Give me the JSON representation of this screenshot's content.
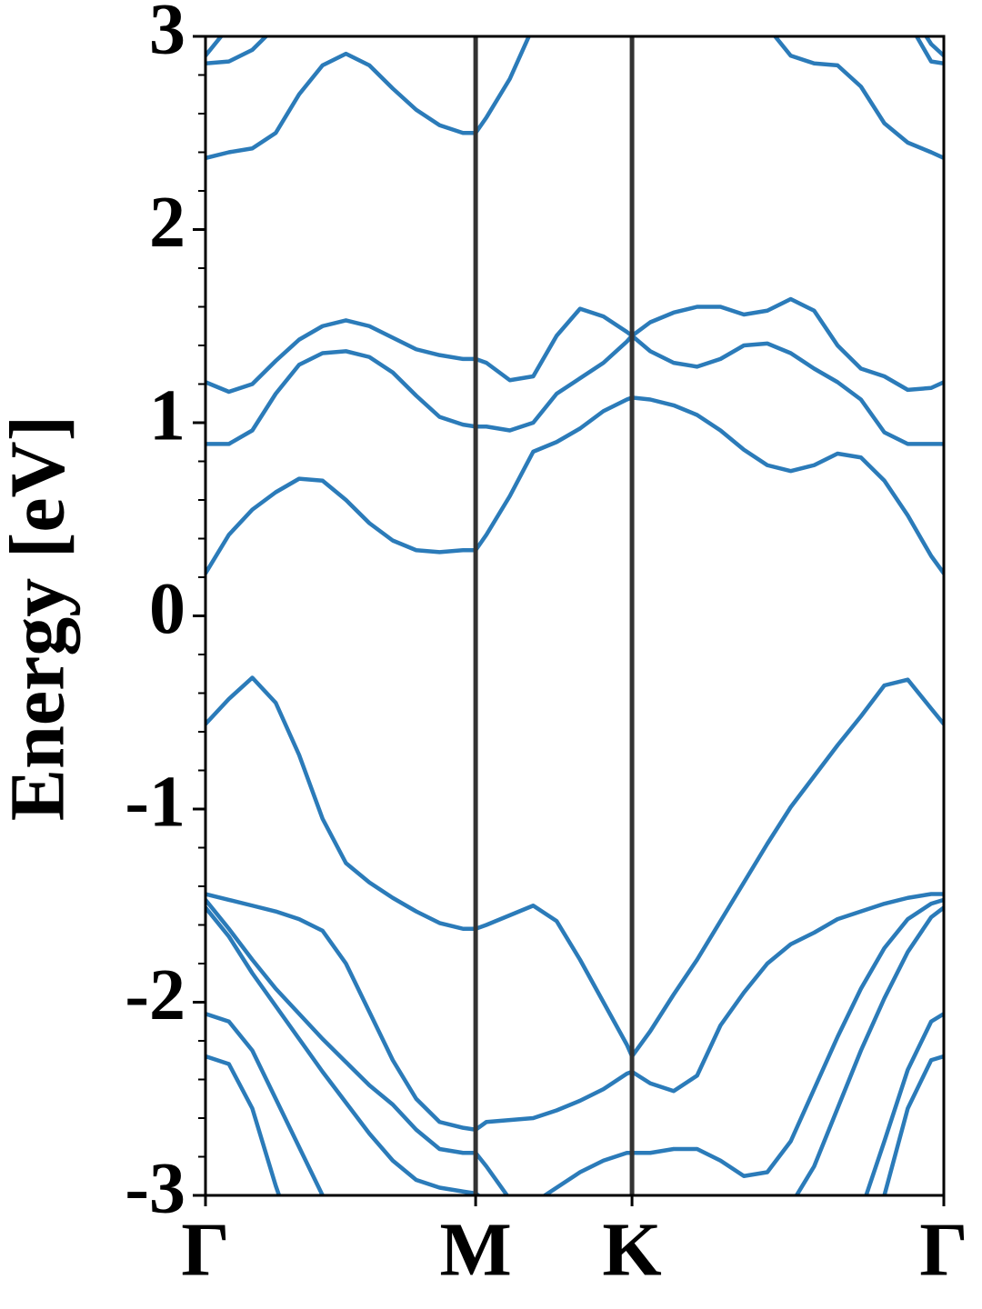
{
  "chart_data": {
    "type": "line",
    "ylabel": "Energy [eV]",
    "x": [
      0,
      0.05,
      0.1,
      0.15,
      0.2,
      0.25,
      0.3,
      0.35,
      0.4,
      0.45,
      0.5,
      0.55,
      0.577,
      0.6,
      0.65,
      0.7,
      0.75,
      0.8,
      0.85,
      0.9,
      0.911,
      0.95,
      1.0,
      1.05,
      1.1,
      1.15,
      1.2,
      1.25,
      1.3,
      1.35,
      1.4,
      1.45,
      1.5,
      1.55,
      1.577
    ],
    "xlim": [
      0,
      1.577
    ],
    "xticks": [
      {
        "value": 0,
        "label": "Γ"
      },
      {
        "value": 0.577,
        "label": "M"
      },
      {
        "value": 0.911,
        "label": "K"
      },
      {
        "value": 1.577,
        "label": "Γ"
      }
    ],
    "ylim": [
      -3,
      3
    ],
    "yticks": [
      -3,
      -2,
      -1,
      0,
      1,
      2,
      3
    ],
    "yminorticks": [
      -2.8,
      -2.6,
      -2.4,
      -2.2,
      -1.8,
      -1.6,
      -1.4,
      -1.2,
      -0.8,
      -0.6,
      -0.4,
      -0.2,
      0.2,
      0.4,
      0.6,
      0.8,
      1.2,
      1.4,
      1.6,
      1.8,
      2.2,
      2.4,
      2.6,
      2.8
    ],
    "color": "#2b7bb9",
    "vline_color": "#333333",
    "series": [
      {
        "values": [
          0.22,
          0.42,
          0.55,
          0.64,
          0.71,
          0.7,
          0.6,
          0.48,
          0.39,
          0.34,
          0.33,
          0.34,
          0.34,
          0.42,
          0.62,
          0.85,
          0.9,
          0.97,
          1.06,
          1.12,
          1.13,
          1.12,
          1.09,
          1.04,
          0.96,
          0.86,
          0.78,
          0.75,
          0.78,
          0.84,
          0.82,
          0.7,
          0.52,
          0.31,
          0.22
        ]
      },
      {
        "values": [
          0.89,
          0.89,
          0.96,
          1.15,
          1.3,
          1.36,
          1.37,
          1.34,
          1.26,
          1.14,
          1.03,
          0.99,
          0.98,
          0.98,
          0.96,
          1.0,
          1.15,
          1.23,
          1.31,
          1.42,
          1.45,
          1.37,
          1.31,
          1.29,
          1.33,
          1.4,
          1.41,
          1.36,
          1.28,
          1.21,
          1.12,
          0.95,
          0.89,
          0.89,
          0.89
        ]
      },
      {
        "values": [
          1.21,
          1.16,
          1.2,
          1.32,
          1.43,
          1.5,
          1.53,
          1.5,
          1.44,
          1.38,
          1.35,
          1.33,
          1.33,
          1.31,
          1.22,
          1.24,
          1.45,
          1.59,
          1.55,
          1.47,
          1.45,
          1.52,
          1.57,
          1.6,
          1.6,
          1.56,
          1.58,
          1.64,
          1.58,
          1.4,
          1.28,
          1.24,
          1.17,
          1.18,
          1.21
        ]
      },
      {
        "values": [
          2.37,
          2.4,
          2.42,
          2.5,
          2.7,
          2.85,
          2.91,
          2.85,
          2.73,
          2.62,
          2.54,
          2.5,
          2.5,
          2.58,
          2.78,
          3.05,
          null,
          null,
          null,
          null,
          null,
          null,
          null,
          null,
          null,
          null,
          3.05,
          2.9,
          2.86,
          2.85,
          2.74,
          2.55,
          2.45,
          2.4,
          2.37
        ]
      },
      {
        "values": [
          2.86,
          2.87,
          2.93,
          3.05,
          null,
          null,
          null,
          null,
          null,
          null,
          null,
          null,
          null,
          null,
          null,
          null,
          null,
          null,
          null,
          null,
          null,
          null,
          null,
          null,
          null,
          null,
          null,
          null,
          null,
          null,
          null,
          null,
          3.08,
          2.87,
          2.86
        ]
      },
      {
        "values": [
          2.9,
          3.05,
          null,
          null,
          null,
          null,
          null,
          null,
          null,
          null,
          null,
          null,
          null,
          null,
          null,
          null,
          null,
          null,
          null,
          null,
          null,
          null,
          null,
          null,
          null,
          null,
          null,
          null,
          null,
          null,
          null,
          null,
          3.15,
          2.96,
          2.9
        ]
      },
      {
        "values": [
          -0.56,
          -0.43,
          -0.32,
          -0.45,
          -0.72,
          -1.05,
          -1.28,
          -1.38,
          -1.46,
          -1.53,
          -1.59,
          -1.62,
          -1.62,
          -1.6,
          -1.55,
          -1.5,
          -1.58,
          -1.78,
          -2.0,
          -2.22,
          -2.28,
          -2.15,
          -1.96,
          -1.78,
          -1.58,
          -1.38,
          -1.18,
          -0.99,
          -0.83,
          -0.67,
          -0.52,
          -0.36,
          -0.33,
          -0.48,
          -0.56
        ]
      },
      {
        "values": [
          -1.44,
          -1.47,
          -1.5,
          -1.53,
          -1.57,
          -1.63,
          -1.8,
          -2.05,
          -2.3,
          -2.5,
          -2.62,
          -2.65,
          -2.66,
          -2.62,
          -2.61,
          -2.6,
          -2.56,
          -2.51,
          -2.45,
          -2.37,
          -2.36,
          -2.42,
          -2.46,
          -2.38,
          -2.12,
          -1.95,
          -1.8,
          -1.7,
          -1.64,
          -1.57,
          -1.53,
          -1.49,
          -1.46,
          -1.44,
          -1.44
        ]
      },
      {
        "values": [
          -1.47,
          -1.62,
          -1.78,
          -1.93,
          -2.06,
          -2.19,
          -2.31,
          -2.43,
          -2.53,
          -2.66,
          -2.76,
          -2.78,
          -2.78,
          -2.85,
          -3.02,
          -3.04,
          -2.96,
          -2.88,
          -2.82,
          -2.78,
          -2.78,
          -2.78,
          -2.76,
          -2.76,
          -2.82,
          -2.9,
          -2.88,
          -2.72,
          -2.45,
          -2.18,
          -1.93,
          -1.72,
          -1.57,
          -1.49,
          -1.47
        ]
      },
      {
        "values": [
          -1.51,
          -1.66,
          -1.85,
          -2.02,
          -2.19,
          -2.36,
          -2.52,
          -2.68,
          -2.82,
          -2.92,
          -2.96,
          -2.98,
          -2.99,
          -3.03,
          null,
          null,
          null,
          null,
          null,
          null,
          null,
          null,
          null,
          null,
          null,
          null,
          null,
          -3.05,
          -2.85,
          -2.55,
          -2.25,
          -1.98,
          -1.74,
          -1.56,
          -1.51
        ]
      },
      {
        "values": [
          -2.06,
          -2.1,
          -2.25,
          -2.5,
          -2.75,
          -3.0,
          -3.2,
          null,
          null,
          null,
          null,
          null,
          null,
          null,
          null,
          null,
          null,
          null,
          null,
          null,
          null,
          null,
          null,
          null,
          null,
          null,
          null,
          null,
          null,
          null,
          -3.08,
          -2.72,
          -2.35,
          -2.1,
          -2.06
        ]
      },
      {
        "values": [
          -2.28,
          -2.32,
          -2.55,
          -2.95,
          -3.3,
          null,
          null,
          null,
          null,
          null,
          null,
          null,
          null,
          null,
          null,
          null,
          null,
          null,
          null,
          null,
          null,
          null,
          null,
          null,
          null,
          null,
          null,
          null,
          null,
          null,
          null,
          -3.0,
          -2.55,
          -2.3,
          -2.28
        ]
      }
    ]
  }
}
